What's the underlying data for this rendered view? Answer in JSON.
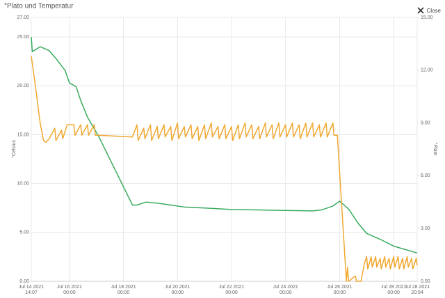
{
  "chart_data": {
    "type": "line",
    "title": "°Plato und Temperatur",
    "y_label": "°Celsius",
    "y2_label": "°Plato",
    "grid": true,
    "xlim": [
      "2021-07-14T14:07",
      "2021-07-28T20:54"
    ],
    "xticks": [
      {
        "value": "2021-07-14T14:07",
        "label": [
          "Jul 14 2021",
          "14:07"
        ]
      },
      {
        "value": "2021-07-16T00:00",
        "label": [
          "Jul 16 2021",
          "00:00"
        ]
      },
      {
        "value": "2021-07-18T00:00",
        "label": [
          "Jul 18 2021",
          "00:00"
        ]
      },
      {
        "value": "2021-07-20T00:00",
        "label": [
          "Jul 20 2021",
          "00:00"
        ]
      },
      {
        "value": "2021-07-22T00:00",
        "label": [
          "Jul 22 2021",
          "00:00"
        ]
      },
      {
        "value": "2021-07-24T00:00",
        "label": [
          "Jul 24 2021",
          "00:00"
        ]
      },
      {
        "value": "2021-07-26T00:00",
        "label": [
          "Jul 26 2021",
          "00:00"
        ]
      },
      {
        "value": "2021-07-28T00:00",
        "label": [
          "Jul 28 2021",
          "00:00"
        ]
      },
      {
        "value": "2021-07-28T20:54",
        "label": [
          "Jul 28 2021",
          "20:54"
        ]
      }
    ],
    "ylim": [
      0,
      27
    ],
    "yticks": [
      {
        "value": 0,
        "label": "0.00"
      },
      {
        "value": 5,
        "label": "5.00"
      },
      {
        "value": 10,
        "label": "10.00"
      },
      {
        "value": 15,
        "label": "15.00"
      },
      {
        "value": 20,
        "label": "20.00"
      },
      {
        "value": 25,
        "label": "25.00"
      },
      {
        "value": 27,
        "label": "27.00"
      }
    ],
    "y2lim": [
      0,
      15
    ],
    "y2ticks": [
      {
        "value": 0,
        "label": "0.00"
      },
      {
        "value": 3,
        "label": "3.00"
      },
      {
        "value": 6,
        "label": "6.00"
      },
      {
        "value": 9,
        "label": "9.00"
      },
      {
        "value": 12,
        "label": "12.00"
      },
      {
        "value": 15,
        "label": "15.00"
      }
    ],
    "series": [
      {
        "color": "#3aab5e",
        "axis": "y",
        "x": [
          "2021-07-14T14:07",
          "2021-07-14T15:00",
          "2021-07-14T22:00",
          "2021-07-15T06:00",
          "2021-07-15T12:00",
          "2021-07-15T20:00",
          "2021-07-16T00:00",
          "2021-07-16T06:00",
          "2021-07-16T10:00",
          "2021-07-16T16:00",
          "2021-07-16T20:00",
          "2021-07-17T01:40",
          "2021-07-18T08:00",
          "2021-07-18T12:00",
          "2021-07-18T20:00",
          "2021-07-19T06:00",
          "2021-07-19T18:00",
          "2021-07-20T06:00",
          "2021-07-21T00:00",
          "2021-07-22T00:00",
          "2021-07-23T00:00",
          "2021-07-24T00:00",
          "2021-07-25T00:00",
          "2021-07-25T08:00",
          "2021-07-25T18:00",
          "2021-07-26T00:00",
          "2021-07-26T08:00",
          "2021-07-26T16:00",
          "2021-07-27T00:00",
          "2021-07-27T12:00",
          "2021-07-28T00:00",
          "2021-07-28T20:54"
        ],
        "values": [
          25.0,
          23.5,
          24.0,
          23.6,
          22.8,
          21.6,
          20.3,
          19.9,
          18.5,
          16.8,
          16.0,
          14.9,
          7.8,
          7.8,
          8.1,
          8.0,
          7.8,
          7.6,
          7.5,
          7.35,
          7.3,
          7.25,
          7.2,
          7.3,
          7.7,
          8.2,
          7.4,
          6.0,
          4.9,
          4.3,
          3.6,
          2.9
        ]
      },
      {
        "color": "#f0a830",
        "axis": "y2",
        "x": [
          "2021-07-14T14:07",
          "2021-07-14T18:00",
          "2021-07-14T22:00",
          "2021-07-15T01:00",
          "2021-07-15T03:00",
          "2021-07-15T06:00",
          "2021-07-15T11:00",
          "2021-07-15T12:00",
          "2021-07-15T17:00",
          "2021-07-15T18:00",
          "2021-07-15T22:00",
          "2021-07-16T00:00",
          "2021-07-16T04:00",
          "2021-07-16T05:00",
          "2021-07-16T10:00",
          "2021-07-16T11:00",
          "2021-07-16T16:00",
          "2021-07-16T17:00",
          "2021-07-16T22:00",
          "2021-07-16T23:00",
          "2021-07-17T02:00",
          "2021-07-18T08:00",
          "2021-07-18T12:00",
          "2021-07-18T13:00",
          "2021-07-18T18:00",
          "2021-07-18T19:00",
          "2021-07-19T00:00",
          "2021-07-19T01:00",
          "2021-07-19T06:00",
          "2021-07-19T07:00",
          "2021-07-19T12:00",
          "2021-07-19T13:00",
          "2021-07-19T18:00",
          "2021-07-19T19:00",
          "2021-07-20T00:00",
          "2021-07-20T01:00",
          "2021-07-20T06:00",
          "2021-07-20T07:00",
          "2021-07-20T12:00",
          "2021-07-20T13:00",
          "2021-07-20T18:00",
          "2021-07-20T19:00",
          "2021-07-21T00:00",
          "2021-07-21T01:00",
          "2021-07-21T06:00",
          "2021-07-21T07:00",
          "2021-07-21T12:00",
          "2021-07-21T13:00",
          "2021-07-21T18:00",
          "2021-07-21T19:00",
          "2021-07-22T00:00",
          "2021-07-22T01:00",
          "2021-07-22T06:00",
          "2021-07-22T07:00",
          "2021-07-22T12:00",
          "2021-07-22T13:00",
          "2021-07-22T18:00",
          "2021-07-22T19:00",
          "2021-07-23T00:00",
          "2021-07-23T01:00",
          "2021-07-23T06:00",
          "2021-07-23T07:00",
          "2021-07-23T12:00",
          "2021-07-23T13:00",
          "2021-07-23T18:00",
          "2021-07-23T19:00",
          "2021-07-24T00:00",
          "2021-07-24T01:00",
          "2021-07-24T06:00",
          "2021-07-24T07:00",
          "2021-07-24T12:00",
          "2021-07-24T13:00",
          "2021-07-24T18:00",
          "2021-07-24T19:00",
          "2021-07-25T00:00",
          "2021-07-25T01:00",
          "2021-07-25T06:00",
          "2021-07-25T07:00",
          "2021-07-25T12:00",
          "2021-07-25T13:00",
          "2021-07-25T18:00",
          "2021-07-25T19:00",
          "2021-07-25T22:00",
          "2021-07-26T06:00",
          "2021-07-26T07:00",
          "2021-07-26T08:00",
          "2021-07-26T14:00",
          "2021-07-26T15:00",
          "2021-07-26T19:00",
          "2021-07-26T22:00",
          "2021-07-27T00:00",
          "2021-07-27T01:00",
          "2021-07-27T04:00",
          "2021-07-27T05:00",
          "2021-07-27T08:00",
          "2021-07-27T09:00",
          "2021-07-27T12:00",
          "2021-07-27T13:00",
          "2021-07-27T16:00",
          "2021-07-27T17:00",
          "2021-07-27T20:00",
          "2021-07-27T21:00",
          "2021-07-28T00:00",
          "2021-07-28T01:00",
          "2021-07-28T04:00",
          "2021-07-28T05:00",
          "2021-07-28T08:00",
          "2021-07-28T09:00",
          "2021-07-28T12:00",
          "2021-07-28T13:00",
          "2021-07-28T16:00",
          "2021-07-28T17:00",
          "2021-07-28T20:00",
          "2021-07-28T20:54"
        ],
        "values": [
          12.8,
          11.0,
          9.0,
          8.0,
          7.9,
          8.1,
          8.7,
          8.0,
          8.6,
          8.1,
          8.9,
          8.9,
          8.9,
          8.3,
          8.9,
          8.3,
          8.9,
          8.3,
          8.9,
          8.3,
          8.3,
          8.2,
          8.9,
          8.0,
          8.7,
          8.1,
          8.9,
          8.0,
          8.8,
          8.1,
          8.9,
          8.2,
          8.8,
          8.0,
          9.0,
          8.1,
          8.8,
          8.2,
          8.9,
          8.1,
          8.8,
          8.0,
          8.9,
          8.1,
          9.0,
          8.2,
          8.8,
          8.1,
          8.9,
          8.1,
          8.8,
          8.0,
          8.9,
          8.1,
          9.0,
          8.2,
          8.9,
          8.1,
          8.8,
          8.1,
          9.0,
          8.2,
          8.9,
          8.1,
          9.0,
          8.2,
          8.9,
          8.2,
          9.0,
          8.2,
          8.9,
          8.1,
          9.0,
          8.2,
          9.0,
          8.2,
          8.9,
          8.2,
          9.0,
          8.2,
          9.0,
          8.3,
          8.3,
          0.0,
          0.8,
          0.0,
          0.3,
          0.0,
          0.0,
          1.0,
          1.4,
          0.7,
          1.4,
          0.8,
          1.4,
          0.8,
          1.3,
          0.7,
          1.4,
          0.8,
          1.3,
          0.7,
          1.4,
          0.8,
          1.4,
          0.7,
          1.3,
          0.7,
          1.4,
          0.8,
          1.3,
          0.7,
          1.3,
          0.9
        ]
      }
    ]
  },
  "close_button": "Close"
}
